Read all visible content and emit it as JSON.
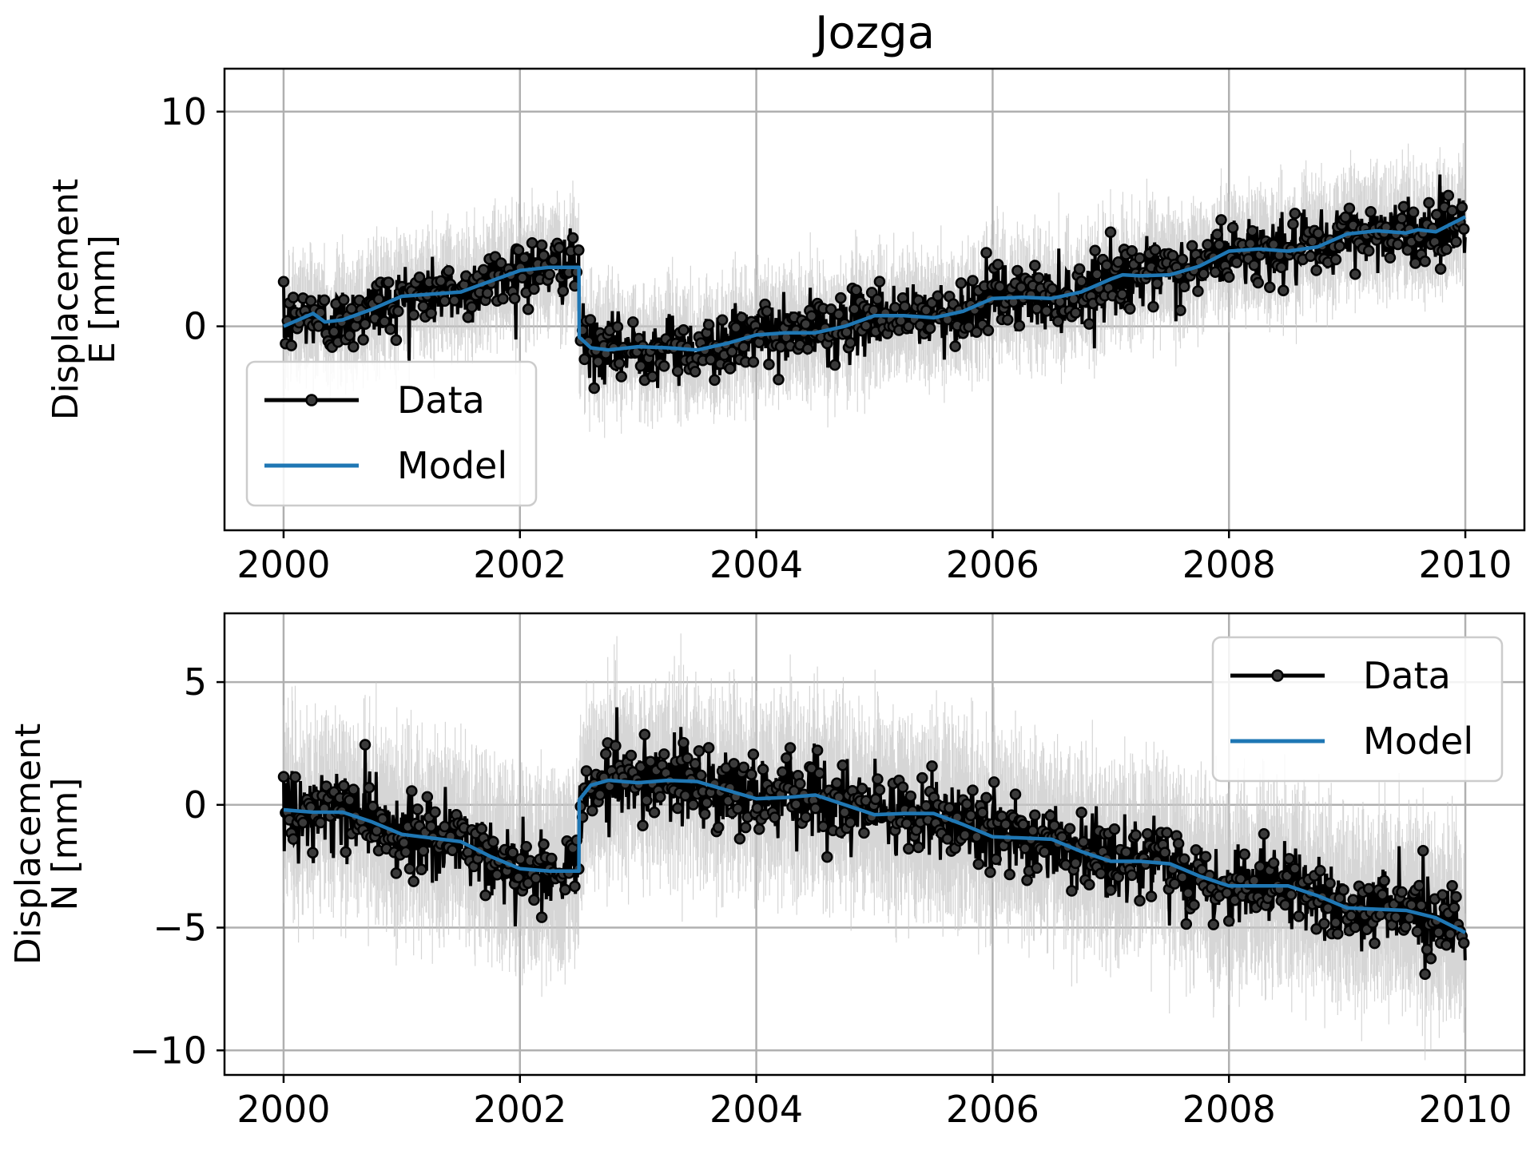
{
  "figure": {
    "title": "Jozga"
  },
  "chart_data": [
    {
      "type": "line",
      "panel": "east",
      "ylabel_line1": "Displacement",
      "ylabel_line2": "E [mm]",
      "xlim": [
        1999.5,
        2010.5
      ],
      "ylim": [
        -9.5,
        12
      ],
      "xticks": [
        2000,
        2002,
        2004,
        2006,
        2008,
        2010
      ],
      "xtick_labels": [
        "2000",
        "2002",
        "2004",
        "2006",
        "2008",
        "2010"
      ],
      "yticks": [
        0,
        10
      ],
      "ytick_labels": [
        "0",
        "10"
      ],
      "grid": true,
      "legend_position": "lower-left",
      "series": [
        {
          "name": "Data",
          "color": "#000000",
          "style": "line-with-circle-markers",
          "uncertainty_color": "#c8c8c8",
          "noise_sd": 0.75,
          "error_halfwidth": 2.0
        },
        {
          "name": "Model",
          "color": "#1f77b4",
          "style": "line",
          "x": [
            2000.0,
            2000.25,
            2000.35,
            2000.5,
            2000.75,
            2001.0,
            2001.25,
            2001.5,
            2001.75,
            2002.0,
            2002.25,
            2002.499,
            2002.501,
            2002.6,
            2002.75,
            2003.0,
            2003.25,
            2003.5,
            2003.75,
            2004.0,
            2004.25,
            2004.5,
            2004.75,
            2005.0,
            2005.25,
            2005.5,
            2005.75,
            2006.0,
            2006.25,
            2006.5,
            2006.75,
            2007.0,
            2007.1,
            2007.25,
            2007.5,
            2007.75,
            2008.0,
            2008.25,
            2008.5,
            2008.75,
            2009.0,
            2009.25,
            2009.5,
            2009.6,
            2009.75,
            2010.0
          ],
          "y": [
            0.0,
            0.6,
            0.2,
            0.3,
            0.8,
            1.4,
            1.5,
            1.6,
            2.1,
            2.6,
            2.75,
            2.75,
            -0.5,
            -1.0,
            -1.1,
            -0.95,
            -1.0,
            -1.1,
            -0.8,
            -0.4,
            -0.3,
            -0.3,
            0.0,
            0.5,
            0.5,
            0.4,
            0.7,
            1.3,
            1.35,
            1.3,
            1.6,
            2.2,
            2.4,
            2.35,
            2.4,
            2.8,
            3.5,
            3.6,
            3.5,
            3.7,
            4.3,
            4.45,
            4.35,
            4.5,
            4.4,
            5.1
          ]
        }
      ]
    },
    {
      "type": "line",
      "panel": "north",
      "ylabel_line1": "Displacement",
      "ylabel_line2": "N [mm]",
      "xlim": [
        1999.5,
        2010.5
      ],
      "ylim": [
        -11,
        7.8
      ],
      "xticks": [
        2000,
        2002,
        2004,
        2006,
        2008,
        2010
      ],
      "xtick_labels": [
        "2000",
        "2002",
        "2004",
        "2006",
        "2008",
        "2010"
      ],
      "yticks": [
        5,
        0,
        -5,
        -10
      ],
      "ytick_labels": [
        "5",
        "0",
        "−5",
        "−10"
      ],
      "grid": true,
      "legend_position": "upper-right",
      "series": [
        {
          "name": "Data",
          "color": "#000000",
          "style": "line-with-circle-markers",
          "uncertainty_color": "#c8c8c8",
          "noise_sd": 0.8,
          "error_halfwidth": 2.8
        },
        {
          "name": "Model",
          "color": "#1f77b4",
          "style": "line",
          "x": [
            2000.0,
            2000.25,
            2000.5,
            2000.75,
            2001.0,
            2001.25,
            2001.5,
            2001.75,
            2002.0,
            2002.25,
            2002.499,
            2002.501,
            2002.6,
            2002.75,
            2003.0,
            2003.25,
            2003.5,
            2003.75,
            2004.0,
            2004.25,
            2004.5,
            2004.75,
            2005.0,
            2005.25,
            2005.5,
            2005.75,
            2006.0,
            2006.25,
            2006.5,
            2006.75,
            2007.0,
            2007.25,
            2007.5,
            2007.75,
            2008.0,
            2008.25,
            2008.5,
            2008.75,
            2009.0,
            2009.25,
            2009.5,
            2009.75,
            2010.0
          ],
          "y": [
            -0.2,
            -0.3,
            -0.3,
            -0.7,
            -1.2,
            -1.35,
            -1.5,
            -2.1,
            -2.6,
            -2.7,
            -2.7,
            0.2,
            0.8,
            1.0,
            0.9,
            1.0,
            0.95,
            0.6,
            0.25,
            0.3,
            0.4,
            0.0,
            -0.4,
            -0.35,
            -0.35,
            -0.8,
            -1.3,
            -1.35,
            -1.4,
            -1.9,
            -2.3,
            -2.3,
            -2.4,
            -2.9,
            -3.3,
            -3.3,
            -3.3,
            -3.7,
            -4.2,
            -4.25,
            -4.3,
            -4.6,
            -5.2
          ]
        }
      ]
    }
  ]
}
